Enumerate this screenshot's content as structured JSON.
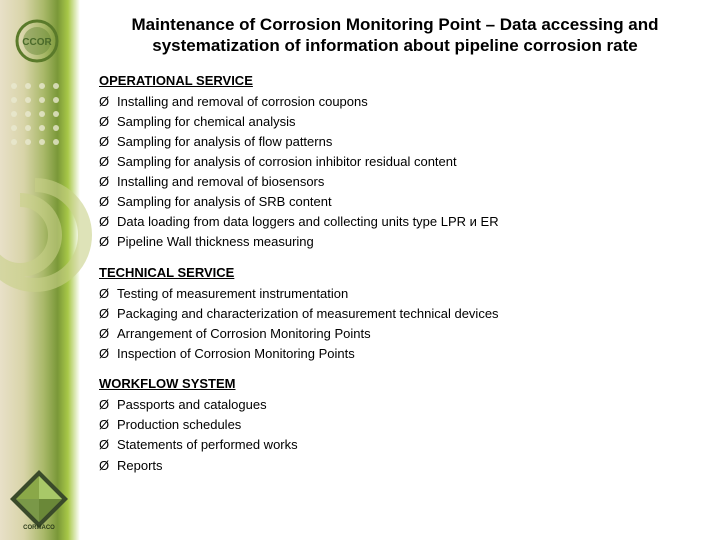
{
  "title": "Maintenance of Corrosion Monitoring Point – Data accessing and systematization of information about pipeline corrosion rate",
  "logo_top_text": "CCOR",
  "diamond_text": "CORMACO",
  "sections": [
    {
      "heading": "OPERATIONAL SERVICE",
      "items": [
        "Installing and removal of corrosion coupons",
        "Sampling for chemical analysis",
        "Sampling for analysis of flow patterns",
        "Sampling for analysis of corrosion inhibitor residual content",
        "Installing and removal of biosensors",
        "Sampling for analysis of SRB content",
        "Data loading from data loggers and collecting units type LPR и  ER",
        "Pipeline Wall thickness measuring"
      ]
    },
    {
      "heading": "TECHNICAL SERVICE",
      "items": [
        "Testing of measurement instrumentation",
        "Packaging and characterization of measurement technical devices",
        "Arrangement of Corrosion Monitoring Points",
        "Inspection of Corrosion Monitoring Points"
      ]
    },
    {
      "heading": "WORKFLOW SYSTEM",
      "items": [
        "Passports and catalogues",
        "Production schedules",
        "Statements of performed works",
        "Reports"
      ]
    }
  ],
  "colors": {
    "text": "#000000",
    "bg": "#ffffff",
    "accent_green": "#7a9838",
    "accent_olive": "#c8d088"
  }
}
